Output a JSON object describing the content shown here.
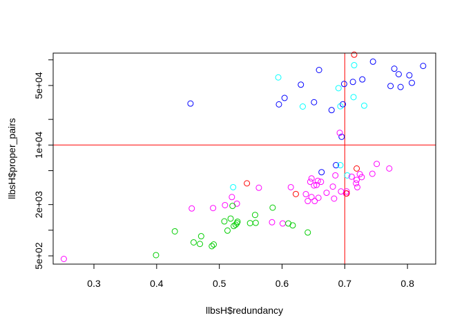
{
  "chart_data": {
    "type": "scatter",
    "title": "",
    "xlabel": "llbsH$redundancy",
    "ylabel": "llbsH$proper_pairs",
    "xlim": [
      0.235,
      0.845
    ],
    "ylim": [
      400,
      120000
    ],
    "ylog": true,
    "grid": false,
    "x_ticks": [
      {
        "value": 0.3,
        "label": "0.3"
      },
      {
        "value": 0.4,
        "label": "0.4"
      },
      {
        "value": 0.5,
        "label": "0.5"
      },
      {
        "value": 0.6,
        "label": "0.6"
      },
      {
        "value": 0.7,
        "label": "0.7"
      },
      {
        "value": 0.8,
        "label": "0.8"
      }
    ],
    "y_ticks": [
      {
        "value": 500,
        "label": "5e+02"
      },
      {
        "value": 1000,
        "label": ""
      },
      {
        "value": 2000,
        "label": "2e+03"
      },
      {
        "value": 5000,
        "label": ""
      },
      {
        "value": 10000,
        "label": "1e+04"
      },
      {
        "value": 20000,
        "label": ""
      },
      {
        "value": 50000,
        "label": "5e+04"
      },
      {
        "value": 100000,
        "label": ""
      }
    ],
    "reference_lines": {
      "color": "#ff0000",
      "vertical_x": 0.7,
      "horizontal_y": 10000
    },
    "series": [
      {
        "color": "#0000ff",
        "points": [
          [
            0.454,
            30700
          ],
          [
            0.595,
            30000
          ],
          [
            0.604,
            35700
          ],
          [
            0.63,
            51100
          ],
          [
            0.651,
            31800
          ],
          [
            0.659,
            76000
          ],
          [
            0.663,
            4800
          ],
          [
            0.686,
            5800
          ],
          [
            0.695,
            12500
          ],
          [
            0.697,
            30100
          ],
          [
            0.699,
            52100
          ],
          [
            0.679,
            25700
          ],
          [
            0.713,
            55100
          ],
          [
            0.728,
            58900
          ],
          [
            0.745,
            95200
          ],
          [
            0.773,
            49300
          ],
          [
            0.779,
            78700
          ],
          [
            0.786,
            67800
          ],
          [
            0.789,
            48000
          ],
          [
            0.803,
            65900
          ],
          [
            0.807,
            53700
          ],
          [
            0.825,
            84800
          ]
        ]
      },
      {
        "color": "#00ffff",
        "points": [
          [
            0.522,
            3200
          ],
          [
            0.594,
            62200
          ],
          [
            0.633,
            28300
          ],
          [
            0.69,
            46500
          ],
          [
            0.693,
            28500
          ],
          [
            0.693,
            5800
          ],
          [
            0.704,
            4400
          ],
          [
            0.714,
            36500
          ],
          [
            0.715,
            86500
          ],
          [
            0.731,
            29000
          ]
        ]
      },
      {
        "color": "#ff00ff",
        "points": [
          [
            0.252,
            460
          ],
          [
            0.456,
            1800
          ],
          [
            0.49,
            1820
          ],
          [
            0.509,
            1970
          ],
          [
            0.52,
            2450
          ],
          [
            0.528,
            2050
          ],
          [
            0.563,
            3150
          ],
          [
            0.584,
            1240
          ],
          [
            0.601,
            1200
          ],
          [
            0.614,
            3200
          ],
          [
            0.638,
            2650
          ],
          [
            0.641,
            2200
          ],
          [
            0.645,
            3700
          ],
          [
            0.647,
            4050
          ],
          [
            0.647,
            2450
          ],
          [
            0.651,
            3350
          ],
          [
            0.652,
            2200
          ],
          [
            0.655,
            3400
          ],
          [
            0.657,
            3800
          ],
          [
            0.658,
            2400
          ],
          [
            0.662,
            3700
          ],
          [
            0.671,
            2750
          ],
          [
            0.681,
            3250
          ],
          [
            0.683,
            2350
          ],
          [
            0.685,
            4400
          ],
          [
            0.692,
            13900
          ],
          [
            0.694,
            2850
          ],
          [
            0.702,
            2700
          ],
          [
            0.703,
            2850
          ],
          [
            0.711,
            4250
          ],
          [
            0.718,
            3550
          ],
          [
            0.719,
            3900
          ],
          [
            0.72,
            3200
          ],
          [
            0.724,
            4550
          ],
          [
            0.727,
            4200
          ],
          [
            0.744,
            4600
          ],
          [
            0.751,
            6000
          ],
          [
            0.771,
            5300
          ]
        ]
      },
      {
        "color": "#00cd00",
        "points": [
          [
            0.399,
            510
          ],
          [
            0.429,
            970
          ],
          [
            0.459,
            720
          ],
          [
            0.469,
            690
          ],
          [
            0.471,
            850
          ],
          [
            0.488,
            650
          ],
          [
            0.491,
            680
          ],
          [
            0.508,
            1270
          ],
          [
            0.513,
            990
          ],
          [
            0.518,
            1370
          ],
          [
            0.521,
            1930
          ],
          [
            0.523,
            1120
          ],
          [
            0.526,
            1160
          ],
          [
            0.528,
            1210
          ],
          [
            0.529,
            1260
          ],
          [
            0.549,
            1210
          ],
          [
            0.557,
            1510
          ],
          [
            0.558,
            1220
          ],
          [
            0.585,
            1840
          ],
          [
            0.61,
            1200
          ],
          [
            0.617,
            1140
          ],
          [
            0.641,
            940
          ]
        ]
      },
      {
        "color": "#ff0000",
        "points": [
          [
            0.544,
            3550
          ],
          [
            0.622,
            2660
          ],
          [
            0.703,
            2700
          ],
          [
            0.715,
            115000
          ],
          [
            0.719,
            5300
          ]
        ]
      }
    ]
  }
}
